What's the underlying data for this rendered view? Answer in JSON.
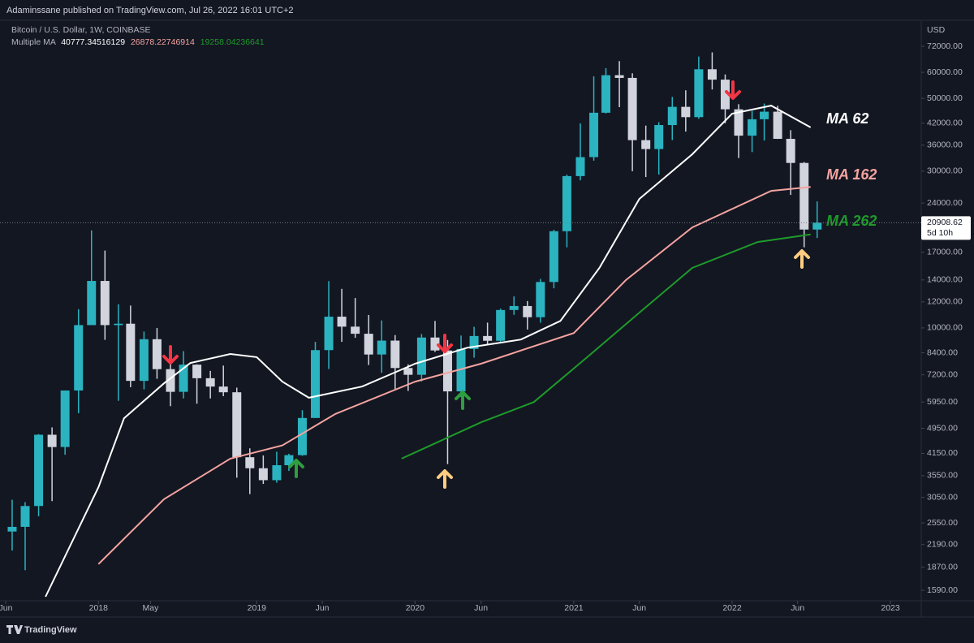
{
  "header": {
    "publisher": "Adaminssane published on TradingView.com, Jul 26, 2022 16:01 UTC+2"
  },
  "footer": {
    "brand": "TradingView"
  },
  "chart_data": {
    "type": "candlestick",
    "title": "Bitcoin / U.S. Dollar, 1W, COINBASE",
    "currency": "USD",
    "indicator": {
      "name": "Multiple MA",
      "values": [
        40777.34516129,
        26878.22746914,
        19258.04236641
      ]
    },
    "log_scale": true,
    "up_color": "#2bb3c0",
    "down_color": "#d1d4dc",
    "candles": {
      "x": [
        "2017-06",
        "2017-07",
        "2017-08",
        "2017-09",
        "2017-10",
        "2017-11",
        "2017-12",
        "2018-01",
        "2018-02",
        "2018-03",
        "2018-04",
        "2018-05",
        "2018-06",
        "2018-07",
        "2018-08",
        "2018-09",
        "2018-10",
        "2018-11",
        "2018-12",
        "2019-01",
        "2019-02",
        "2019-03",
        "2019-04",
        "2019-05",
        "2019-06",
        "2019-07",
        "2019-08",
        "2019-09",
        "2019-10",
        "2019-11",
        "2019-12",
        "2020-01",
        "2020-02",
        "2020-03",
        "2020-04",
        "2020-05",
        "2020-06",
        "2020-07",
        "2020-08",
        "2020-09",
        "2020-10",
        "2020-11",
        "2020-12",
        "2021-01",
        "2021-02",
        "2021-03",
        "2021-04",
        "2021-05",
        "2021-06",
        "2021-07",
        "2021-08",
        "2021-09",
        "2021-10",
        "2021-11",
        "2021-12",
        "2022-01",
        "2022-02",
        "2022-03",
        "2022-04",
        "2022-05",
        "2022-06",
        "2022-07"
      ],
      "open": [
        2400,
        2480,
        2870,
        4730,
        4340,
        6450,
        10200,
        13900,
        10200,
        10300,
        6900,
        9240,
        7490,
        6390,
        7730,
        7030,
        6630,
        6370,
        4040,
        3740,
        3440,
        3820,
        4100,
        5320,
        8560,
        10820,
        10090,
        9600,
        8300,
        9150,
        7550,
        7200,
        9350,
        8540,
        6410,
        8630,
        9450,
        9140,
        11340,
        11660,
        10780,
        13800,
        19700,
        28990,
        33110,
        45200,
        58800,
        57700,
        37300,
        35040,
        41460,
        47100,
        43820,
        61300,
        57000,
        46300,
        38490,
        43180,
        45530,
        37640,
        31790,
        19930
      ],
      "high": [
        3000,
        2950,
        4750,
        4980,
        6450,
        11400,
        19800,
        17200,
        11800,
        11700,
        9750,
        9990,
        7760,
        8500,
        7750,
        7400,
        7680,
        6580,
        4300,
        4090,
        4200,
        4140,
        5620,
        9070,
        13880,
        13150,
        12330,
        10950,
        10540,
        9510,
        7750,
        9580,
        10500,
        9190,
        9480,
        10080,
        10380,
        11450,
        12470,
        12070,
        14100,
        19900,
        29300,
        41950,
        58350,
        61780,
        64900,
        59600,
        41300,
        42300,
        50500,
        52900,
        67000,
        69000,
        59100,
        47990,
        45800,
        48200,
        47450,
        40000,
        31990,
        24280
      ],
      "low": [
        2100,
        1830,
        2670,
        2970,
        4110,
        5500,
        10900,
        9200,
        6000,
        6600,
        6500,
        7000,
        5780,
        6100,
        5880,
        6100,
        6200,
        3500,
        3120,
        3350,
        3380,
        3670,
        4080,
        5320,
        7500,
        9070,
        9330,
        7710,
        7300,
        6510,
        6430,
        6870,
        8450,
        3850,
        6160,
        8120,
        8900,
        8970,
        10960,
        9890,
        10370,
        13200,
        17600,
        28130,
        32300,
        44950,
        47000,
        30000,
        28800,
        29300,
        37300,
        39600,
        43300,
        53200,
        42000,
        32900,
        34300,
        37200,
        37600,
        25400,
        17600,
        18780
      ],
      "close": [
        2480,
        2870,
        4730,
        4340,
        6450,
        10200,
        13900,
        10200,
        10300,
        6900,
        9240,
        7490,
        6390,
        7730,
        7030,
        6630,
        6370,
        4040,
        3740,
        3440,
        3820,
        4100,
        5320,
        8560,
        10820,
        10090,
        9600,
        8300,
        9150,
        7550,
        7200,
        9350,
        8540,
        6410,
        8630,
        9450,
        9140,
        11340,
        11660,
        10780,
        13800,
        19700,
        28990,
        33110,
        45200,
        58800,
        57700,
        37300,
        35040,
        41460,
        47100,
        43820,
        61300,
        57000,
        46300,
        38490,
        43180,
        45530,
        37640,
        31790,
        19930,
        20908.62
      ]
    },
    "series": [
      {
        "name": "MA 62",
        "color": "#ffffff",
        "x": [
          "2017-09",
          "2018-01",
          "2018-03",
          "2018-06",
          "2018-08",
          "2018-11",
          "2019-01",
          "2019-03",
          "2019-05",
          "2019-09",
          "2020-01",
          "2020-05",
          "2020-09",
          "2020-12",
          "2021-03",
          "2021-06",
          "2021-10",
          "2022-01",
          "2022-04",
          "2022-07"
        ],
        "values": [
          1520,
          3275,
          5310,
          6780,
          7820,
          8330,
          8150,
          6860,
          6130,
          6630,
          7780,
          8710,
          9220,
          10500,
          15230,
          24700,
          33780,
          44900,
          47500,
          40777
        ]
      },
      {
        "name": "MA 162",
        "color": "#f4a3a0",
        "x": [
          "2018-01",
          "2018-06",
          "2018-11",
          "2019-03",
          "2019-07",
          "2020-01",
          "2020-06",
          "2021-01",
          "2021-05",
          "2021-10",
          "2022-04",
          "2022-07"
        ],
        "values": [
          1910,
          3010,
          4000,
          4390,
          5470,
          6860,
          7780,
          9650,
          13980,
          20230,
          26140,
          26878
        ]
      },
      {
        "name": "MA 262",
        "color": "#1e9a2a",
        "x": [
          "2019-12",
          "2020-06",
          "2020-10",
          "2021-02",
          "2021-06",
          "2021-10",
          "2022-03",
          "2022-07"
        ],
        "values": [
          4000,
          5160,
          5950,
          8150,
          11130,
          15230,
          18260,
          19258
        ]
      }
    ],
    "last_price": 20908.62,
    "countdown": "5d 10h",
    "xlim": [
      "2017-05-19",
      "2023-03-13"
    ],
    "xticks": [
      {
        "value": "2017-06",
        "label": "Jun"
      },
      {
        "value": "2018-01",
        "label": "2018"
      },
      {
        "value": "2018-05",
        "label": "May"
      },
      {
        "value": "2019-01",
        "label": "2019"
      },
      {
        "value": "2019-06",
        "label": "Jun"
      },
      {
        "value": "2020-01",
        "label": "2020"
      },
      {
        "value": "2020-06",
        "label": "Jun"
      },
      {
        "value": "2021-01",
        "label": "2021"
      },
      {
        "value": "2021-06",
        "label": "Jun"
      },
      {
        "value": "2022-01",
        "label": "2022"
      },
      {
        "value": "2022-06",
        "label": "Jun"
      },
      {
        "value": "2023-01",
        "label": "2023"
      }
    ],
    "ylim": [
      1477,
      86400
    ],
    "yticks": [
      {
        "value": 72000,
        "label": "72000.00"
      },
      {
        "value": 60000,
        "label": "60000.00"
      },
      {
        "value": 50000,
        "label": "50000.00"
      },
      {
        "value": 42000,
        "label": "42000.00"
      },
      {
        "value": 36000,
        "label": "36000.00"
      },
      {
        "value": 30000,
        "label": "30000.00"
      },
      {
        "value": 24000,
        "label": "24000.00"
      },
      {
        "value": 17000,
        "label": "17000.00"
      },
      {
        "value": 14000,
        "label": "14000.00"
      },
      {
        "value": 12000,
        "label": "12000.00"
      },
      {
        "value": 10000,
        "label": "10000.00"
      },
      {
        "value": 8400,
        "label": "8400.00"
      },
      {
        "value": 7200,
        "label": "7200.00"
      },
      {
        "value": 5950,
        "label": "5950.00"
      },
      {
        "value": 4950,
        "label": "4950.00"
      },
      {
        "value": 4150,
        "label": "4150.00"
      },
      {
        "value": 3550,
        "label": "3550.00"
      },
      {
        "value": 3050,
        "label": "3050.00"
      },
      {
        "value": 2550,
        "label": "2550.00"
      },
      {
        "value": 2190,
        "label": "2190.00"
      },
      {
        "value": 1870,
        "label": "1870.00"
      },
      {
        "value": 1590,
        "label": "1590.00"
      }
    ]
  }
}
